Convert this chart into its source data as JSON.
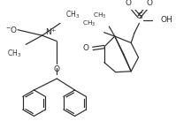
{
  "bg_color": "#ffffff",
  "line_color": "#2a2a2a",
  "lw": 0.85,
  "figsize": [
    1.99,
    1.37
  ],
  "dpi": 100,
  "xlim": [
    0,
    199
  ],
  "ylim": [
    0,
    137
  ]
}
